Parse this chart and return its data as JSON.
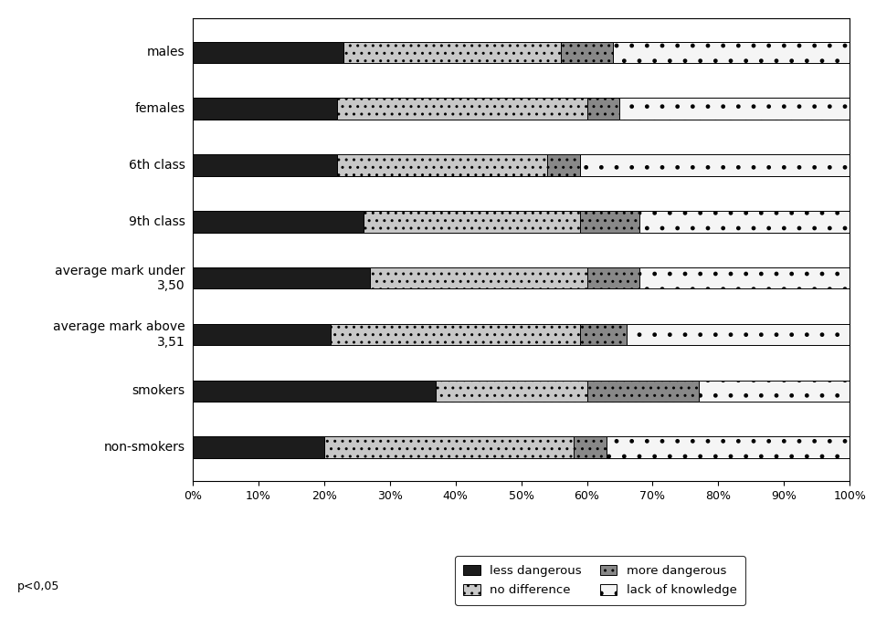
{
  "categories": [
    "males",
    "females",
    "6th class",
    "9th class",
    "average mark under\n3,50",
    "average mark above\n3,51",
    "smokers",
    "non-smokers"
  ],
  "segments": {
    "less_dangerous": [
      23,
      22,
      22,
      26,
      27,
      21,
      37,
      20
    ],
    "no_difference": [
      33,
      38,
      32,
      33,
      33,
      38,
      23,
      38
    ],
    "more_dangerous": [
      8,
      5,
      5,
      9,
      8,
      7,
      17,
      5
    ],
    "lack_of_knowledge": [
      36,
      35,
      41,
      32,
      32,
      34,
      23,
      37
    ]
  },
  "color_ld": "#1c1c1c",
  "color_nd": "#c8c8c8",
  "color_md": "#888888",
  "color_lok": "#f5f5f5",
  "annotation": "p<0,05",
  "xlim": [
    0,
    100
  ],
  "figsize": [
    9.59,
    6.76
  ],
  "dpi": 100,
  "bar_height": 0.38,
  "legend_entries": [
    [
      "less dangerous",
      "no difference"
    ],
    [
      "more dangerous",
      "lack of knowledge"
    ]
  ]
}
